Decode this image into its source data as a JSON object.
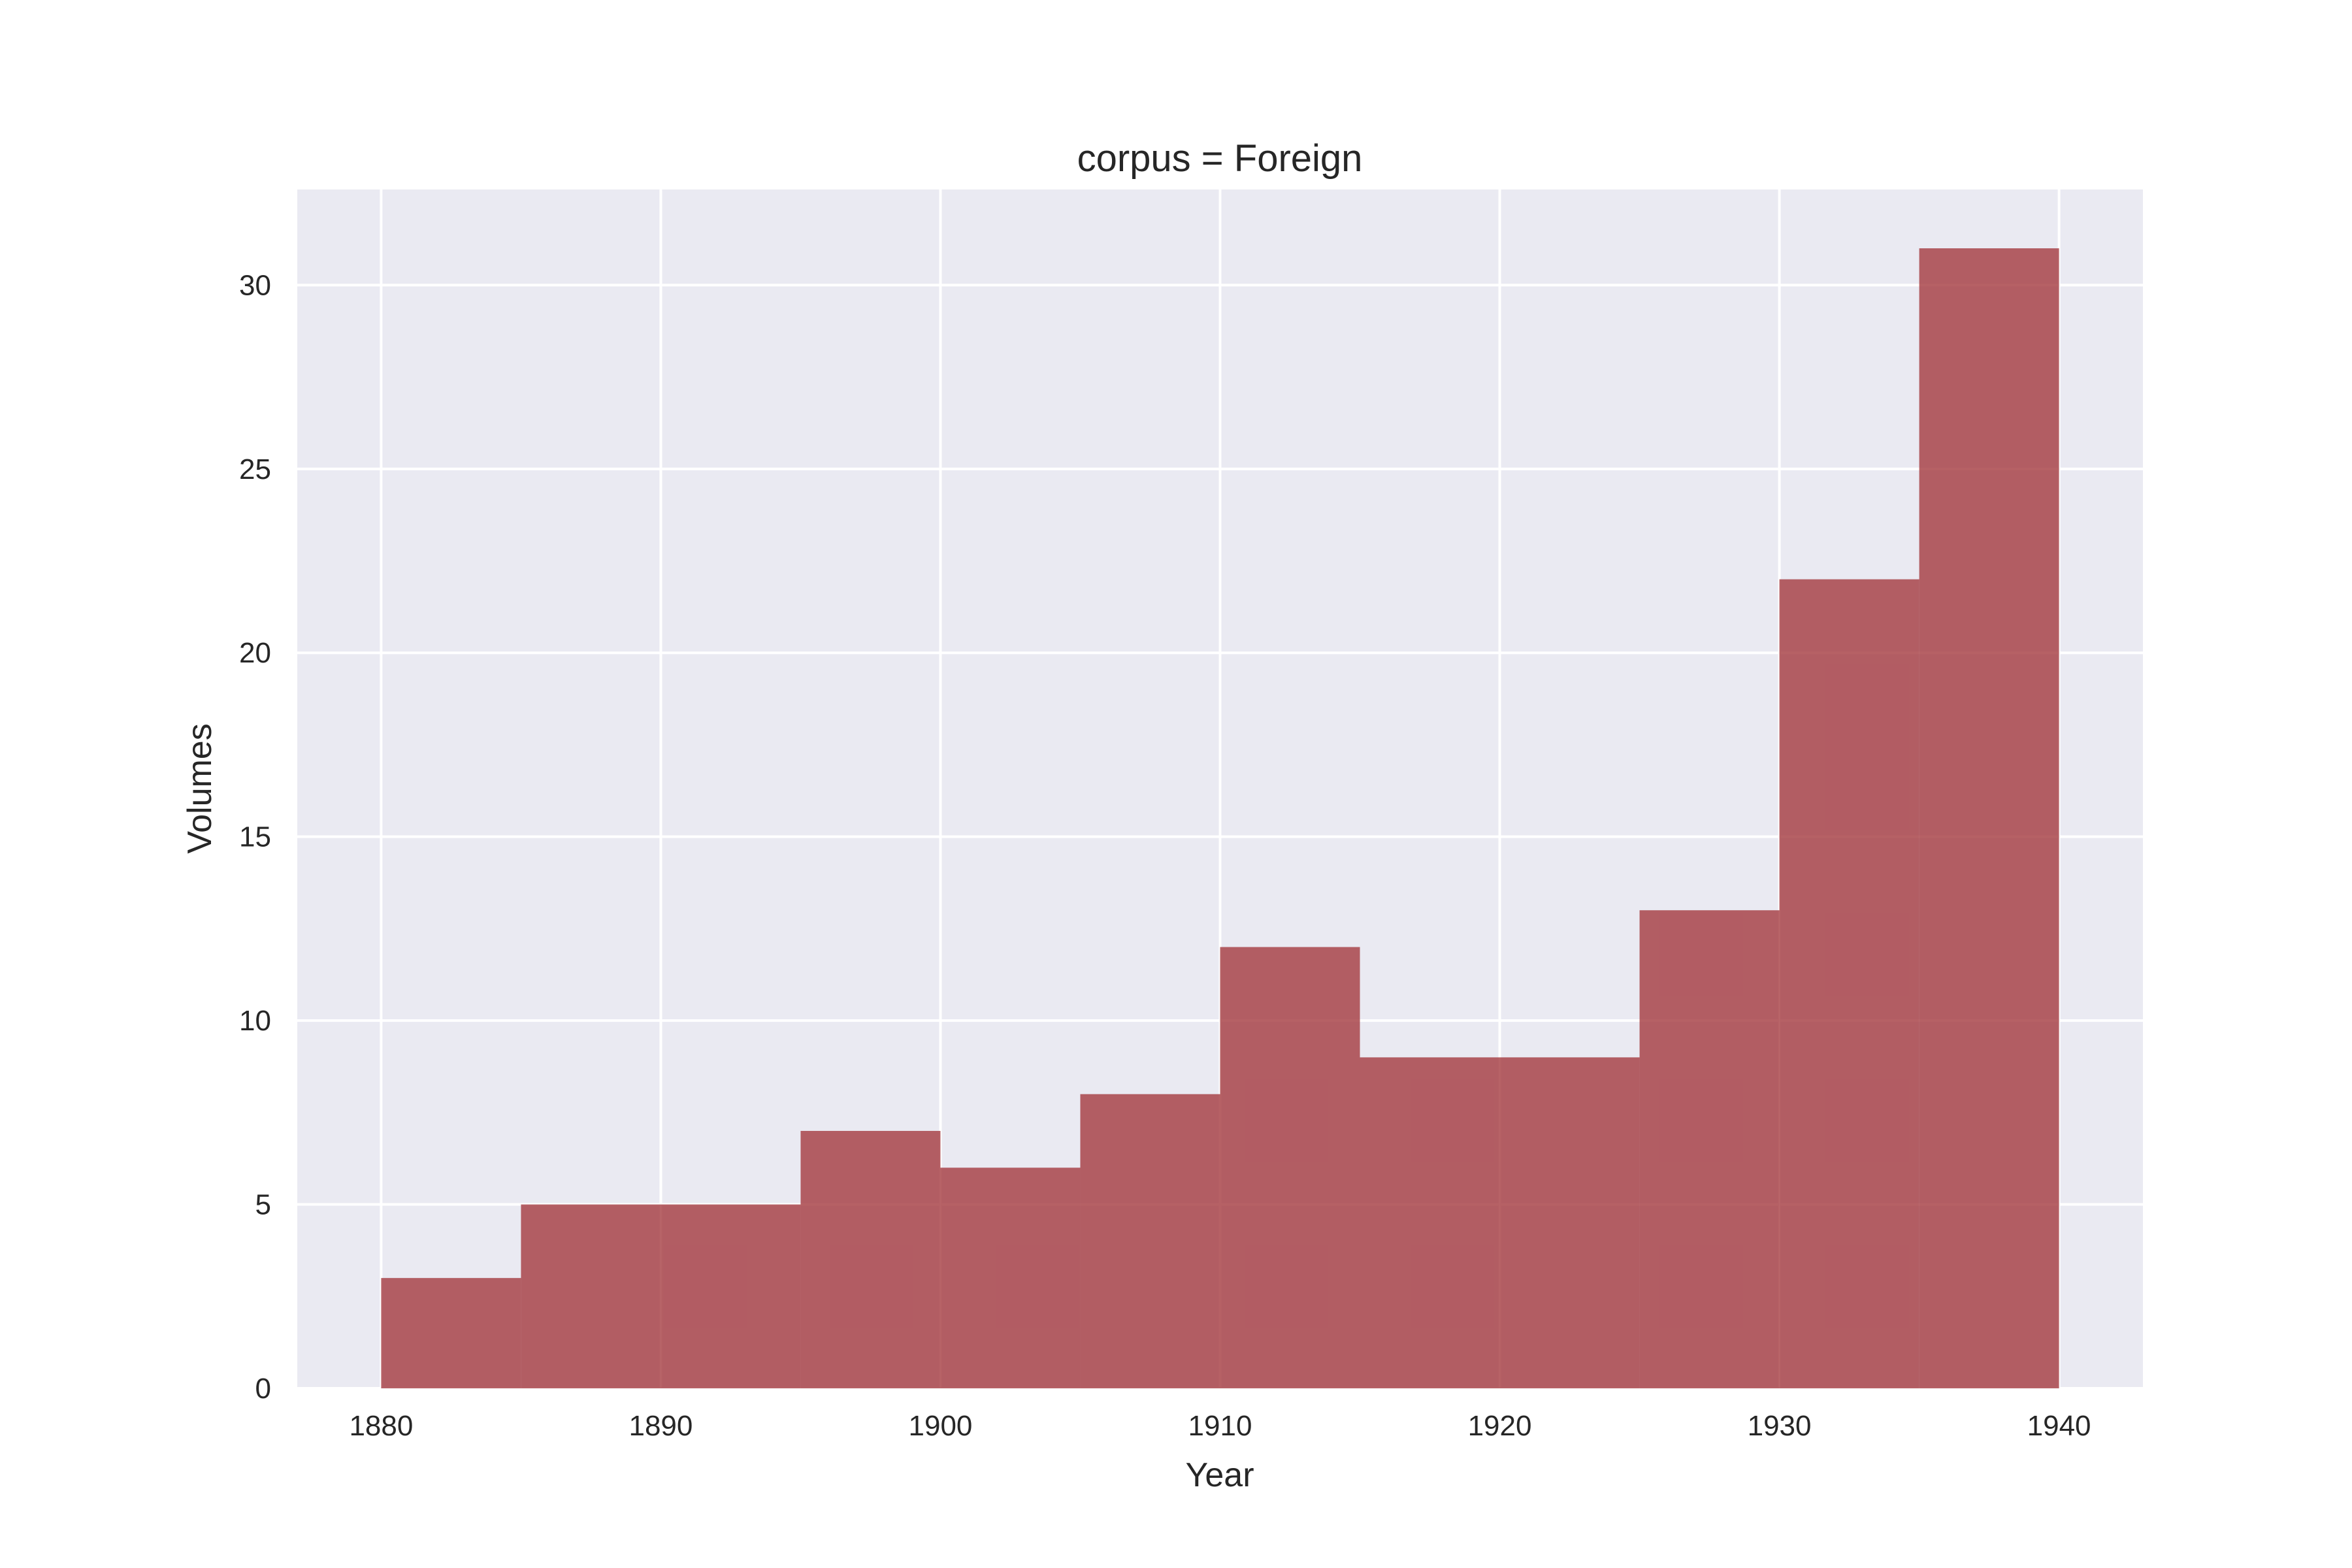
{
  "chart_data": {
    "type": "bar",
    "title": "corpus = Foreign",
    "xlabel": "Year",
    "ylabel": "Volumes",
    "bin_edges": [
      1880,
      1885,
      1890,
      1895,
      1900,
      1905,
      1910,
      1915,
      1920,
      1925,
      1930,
      1935,
      1940
    ],
    "values": [
      3,
      5,
      5,
      7,
      6,
      8,
      12,
      9,
      9,
      13,
      22,
      31
    ],
    "xlim": [
      1877,
      1943
    ],
    "ylim": [
      0,
      32.6
    ],
    "xticks": [
      1880,
      1890,
      1900,
      1910,
      1920,
      1930,
      1940
    ],
    "yticks": [
      0,
      5,
      10,
      15,
      20,
      25,
      30
    ],
    "grid": true,
    "colors": {
      "bar": "#a4393f",
      "background": "#eaeaf2",
      "grid": "#ffffff"
    }
  }
}
